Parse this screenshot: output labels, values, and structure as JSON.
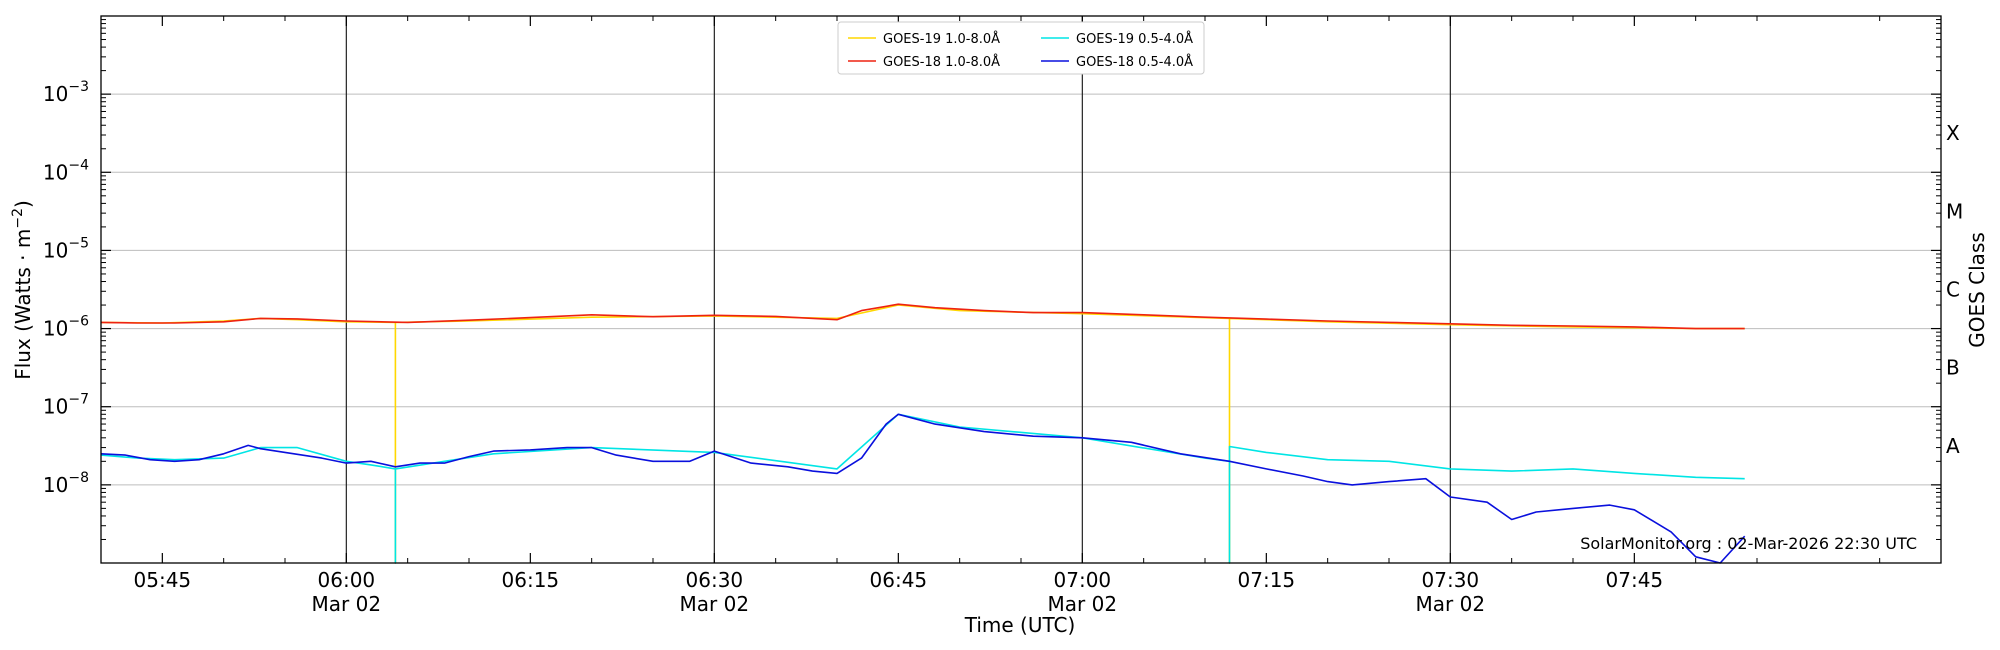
{
  "chart_data": {
    "type": "line",
    "xlabel": "Time (UTC)",
    "ylabel_main": "Flux (Watts · m",
    "ylabel_sup": "−2",
    "ylabel_close": ")",
    "y2label": "GOES Class",
    "yscale": "log",
    "ylim": [
      1e-09,
      0.01
    ],
    "xlim": [
      "05:40",
      "08:10"
    ],
    "grid": "horizontal",
    "legend_position": "top-center",
    "credit": "SolarMonitor.org : 02-Mar-2026 22:30 UTC",
    "y_ticks": [
      {
        "base": "10",
        "exp": "−3",
        "value": 0.001
      },
      {
        "base": "10",
        "exp": "−4",
        "value": 0.0001
      },
      {
        "base": "10",
        "exp": "−5",
        "value": 1e-05
      },
      {
        "base": "10",
        "exp": "−6",
        "value": 1e-06
      },
      {
        "base": "10",
        "exp": "−7",
        "value": 1e-07
      },
      {
        "base": "10",
        "exp": "−8",
        "value": 1e-08
      }
    ],
    "x_ticks": [
      {
        "time": "05:45",
        "label": "05:45",
        "date": ""
      },
      {
        "time": "06:00",
        "label": "06:00",
        "date": "Mar 02"
      },
      {
        "time": "06:15",
        "label": "06:15",
        "date": ""
      },
      {
        "time": "06:30",
        "label": "06:30",
        "date": "Mar 02"
      },
      {
        "time": "06:45",
        "label": "06:45",
        "date": ""
      },
      {
        "time": "07:00",
        "label": "07:00",
        "date": "Mar 02"
      },
      {
        "time": "07:15",
        "label": "07:15",
        "date": ""
      },
      {
        "time": "07:30",
        "label": "07:30",
        "date": "Mar 02"
      },
      {
        "time": "07:45",
        "label": "07:45",
        "date": ""
      }
    ],
    "vertical_lines": [
      "06:00",
      "06:30",
      "07:00",
      "07:30"
    ],
    "goes_classes": [
      {
        "label": "X",
        "value": 0.000316
      },
      {
        "label": "M",
        "value": 3.16e-05
      },
      {
        "label": "C",
        "value": 3.16e-06
      },
      {
        "label": "B",
        "value": 3.16e-07
      },
      {
        "label": "A",
        "value": 3.16e-08
      }
    ],
    "series": [
      {
        "name": "GOES-19 1.0-8.0Å",
        "color": "#ffd700",
        "x": [
          "05:40",
          "05:45",
          "05:50",
          "05:53",
          "05:56",
          "06:00",
          "06:04",
          "06:04",
          "06:04",
          "06:10",
          "06:20",
          "06:30",
          "06:40",
          "06:45",
          "06:50",
          "07:00",
          "07:12",
          "07:12",
          "07:12",
          "07:20",
          "07:30",
          "07:40",
          "07:50",
          "07:54"
        ],
        "y": [
          1.2e-06,
          1.18e-06,
          1.25e-06,
          1.35e-06,
          1.3e-06,
          1.22e-06,
          1.2e-06,
          1e-09,
          1.2e-06,
          1.25e-06,
          1.4e-06,
          1.45e-06,
          1.35e-06,
          2e-06,
          1.7e-06,
          1.55e-06,
          1.35e-06,
          1e-09,
          1.35e-06,
          1.22e-06,
          1.12e-06,
          1.05e-06,
          1e-06,
          1e-06
        ]
      },
      {
        "name": "GOES-18 1.0-8.0Å",
        "color": "#ee2211",
        "x": [
          "05:40",
          "05:43",
          "05:46",
          "05:50",
          "05:53",
          "05:56",
          "06:00",
          "06:05",
          "06:10",
          "06:15",
          "06:20",
          "06:25",
          "06:30",
          "06:35",
          "06:40",
          "06:42",
          "06:45",
          "06:48",
          "06:52",
          "06:56",
          "07:00",
          "07:05",
          "07:10",
          "07:15",
          "07:20",
          "07:25",
          "07:30",
          "07:35",
          "07:40",
          "07:45",
          "07:50",
          "07:54"
        ],
        "y": [
          1.2e-06,
          1.18e-06,
          1.18e-06,
          1.22e-06,
          1.35e-06,
          1.33e-06,
          1.25e-06,
          1.2e-06,
          1.28e-06,
          1.38e-06,
          1.5e-06,
          1.42e-06,
          1.48e-06,
          1.43e-06,
          1.3e-06,
          1.7e-06,
          2.05e-06,
          1.85e-06,
          1.7e-06,
          1.6e-06,
          1.6e-06,
          1.5e-06,
          1.4e-06,
          1.32e-06,
          1.25e-06,
          1.2e-06,
          1.15e-06,
          1.1e-06,
          1.08e-06,
          1.05e-06,
          1e-06,
          1e-06
        ]
      },
      {
        "name": "GOES-19 0.5-4.0Å",
        "color": "#00e5e5",
        "x": [
          "05:40",
          "05:43",
          "05:46",
          "05:50",
          "05:53",
          "05:56",
          "06:00",
          "06:02",
          "06:04",
          "06:04",
          "06:04",
          "06:08",
          "06:12",
          "06:20",
          "06:30",
          "06:40",
          "06:45",
          "06:50",
          "07:00",
          "07:10",
          "07:12",
          "07:12",
          "07:12",
          "07:15",
          "07:20",
          "07:25",
          "07:30",
          "07:35",
          "07:40",
          "07:45",
          "07:50",
          "07:54"
        ],
        "y": [
          2.4e-08,
          2.2e-08,
          2.1e-08,
          2.2e-08,
          3e-08,
          3e-08,
          2e-08,
          1.8e-08,
          1.6e-08,
          1e-09,
          1.6e-08,
          2e-08,
          2.5e-08,
          3e-08,
          2.6e-08,
          1.6e-08,
          8e-08,
          5.5e-08,
          4e-08,
          2.2e-08,
          2e-08,
          1e-09,
          3.1e-08,
          2.6e-08,
          2.1e-08,
          2e-08,
          1.6e-08,
          1.5e-08,
          1.6e-08,
          1.4e-08,
          1.25e-08,
          1.2e-08
        ]
      },
      {
        "name": "GOES-18 0.5-4.0Å",
        "color": "#0a10dd",
        "x": [
          "05:40",
          "05:42",
          "05:44",
          "05:46",
          "05:48",
          "05:50",
          "05:52",
          "05:53",
          "05:55",
          "05:58",
          "06:00",
          "06:02",
          "06:04",
          "06:06",
          "06:08",
          "06:10",
          "06:12",
          "06:15",
          "06:18",
          "06:20",
          "06:22",
          "06:25",
          "06:28",
          "06:30",
          "06:33",
          "06:36",
          "06:38",
          "06:40",
          "06:42",
          "06:44",
          "06:45",
          "06:48",
          "06:52",
          "06:56",
          "07:00",
          "07:04",
          "07:08",
          "07:12",
          "07:15",
          "07:18",
          "07:20",
          "07:22",
          "07:25",
          "07:28",
          "07:30",
          "07:33",
          "07:35",
          "07:37",
          "07:40",
          "07:43",
          "07:45",
          "07:48",
          "07:50",
          "07:52",
          "07:54"
        ],
        "y": [
          2.5e-08,
          2.4e-08,
          2.1e-08,
          2e-08,
          2.1e-08,
          2.5e-08,
          3.2e-08,
          2.9e-08,
          2.6e-08,
          2.2e-08,
          1.9e-08,
          2e-08,
          1.7e-08,
          1.9e-08,
          1.9e-08,
          2.3e-08,
          2.7e-08,
          2.8e-08,
          3e-08,
          3e-08,
          2.4e-08,
          2e-08,
          2e-08,
          2.7e-08,
          1.9e-08,
          1.7e-08,
          1.5e-08,
          1.4e-08,
          2.2e-08,
          6e-08,
          8e-08,
          6e-08,
          4.8e-08,
          4.2e-08,
          4e-08,
          3.5e-08,
          2.5e-08,
          2e-08,
          1.6e-08,
          1.3e-08,
          1.1e-08,
          1e-08,
          1.1e-08,
          1.2e-08,
          7e-09,
          6e-09,
          3.6e-09,
          4.5e-09,
          5e-09,
          5.5e-09,
          4.8e-09,
          2.5e-09,
          1.2e-09,
          1e-09,
          2.2e-09
        ]
      }
    ]
  }
}
